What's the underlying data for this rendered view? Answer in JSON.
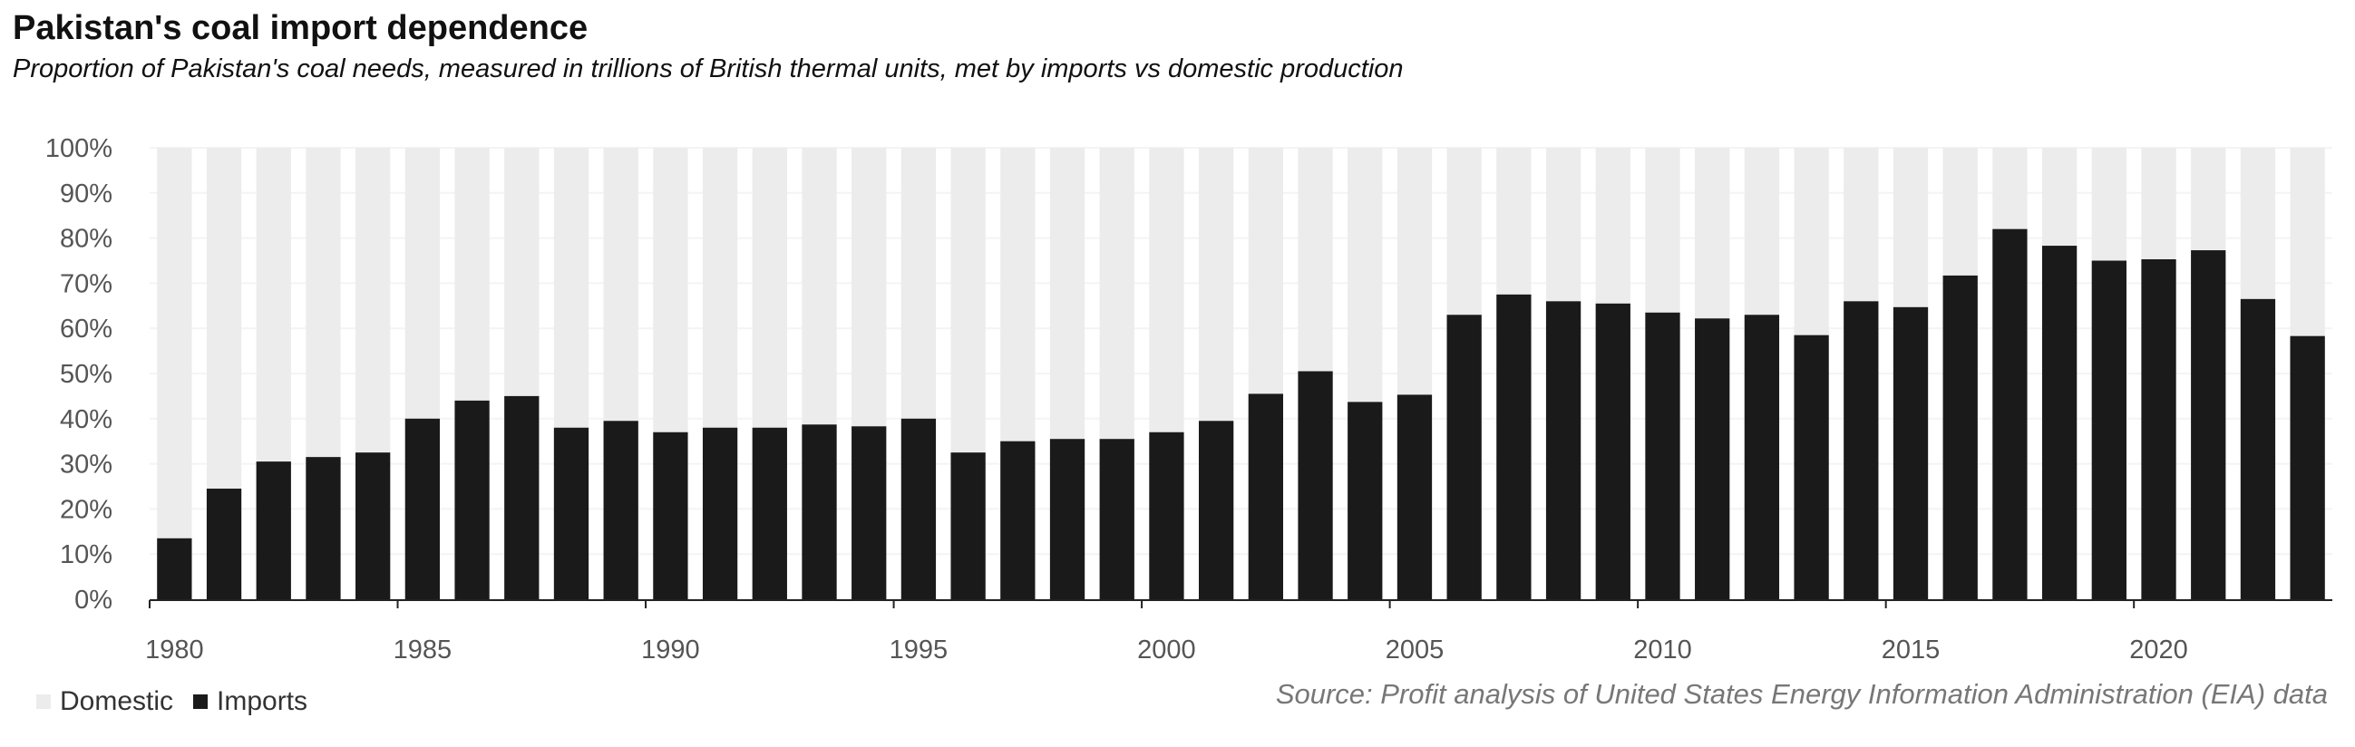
{
  "chart_data": {
    "type": "bar",
    "stacked": true,
    "percent": true,
    "title": "Pakistan's coal import dependence",
    "subtitle": "Proportion of Pakistan's coal needs, measured in trillions of British thermal units, met by imports vs domestic production",
    "source": "Source: Profit analysis of United States Energy Information Administration (EIA) data",
    "x": [
      1980,
      1981,
      1982,
      1983,
      1984,
      1985,
      1986,
      1987,
      1988,
      1989,
      1990,
      1991,
      1992,
      1993,
      1994,
      1995,
      1996,
      1997,
      1998,
      1999,
      2000,
      2001,
      2002,
      2003,
      2004,
      2005,
      2006,
      2007,
      2008,
      2009,
      2010,
      2011,
      2012,
      2013,
      2014,
      2015,
      2016,
      2017,
      2018,
      2019,
      2020,
      2021,
      2022,
      2023
    ],
    "x_tick_labels": [
      "1980",
      "1985",
      "1990",
      "1995",
      "2000",
      "2005",
      "2010",
      "2015",
      "2020"
    ],
    "y_tick_labels": [
      "0%",
      "10%",
      "20%",
      "30%",
      "40%",
      "50%",
      "60%",
      "70%",
      "80%",
      "90%",
      "100%"
    ],
    "ylim": [
      0,
      100
    ],
    "grid": true,
    "legend_position": "bottom-left",
    "series": [
      {
        "name": "Imports",
        "color": "#1a1a1a",
        "values": [
          13.5,
          24.5,
          30.5,
          31.5,
          32.5,
          40,
          44,
          45,
          38,
          39.5,
          37,
          38,
          38,
          38.7,
          38.3,
          40,
          32.5,
          35,
          35.5,
          35.5,
          37,
          39.5,
          45.5,
          50.5,
          43.7,
          45.3,
          63,
          67.5,
          66,
          65.5,
          63.5,
          62.2,
          63,
          58.5,
          66,
          64.7,
          71.7,
          82,
          78.3,
          75,
          75.3,
          77.3,
          66.5,
          58.3
        ]
      },
      {
        "name": "Domestic",
        "color": "#ececec",
        "fills_to": 100
      }
    ]
  },
  "legend": {
    "domestic_label": "Domestic",
    "imports_label": "Imports"
  },
  "colors": {
    "imports": "#1a1a1a",
    "domestic": "#ececec",
    "gridline": "#f4f4f4",
    "axis": "#222222"
  }
}
